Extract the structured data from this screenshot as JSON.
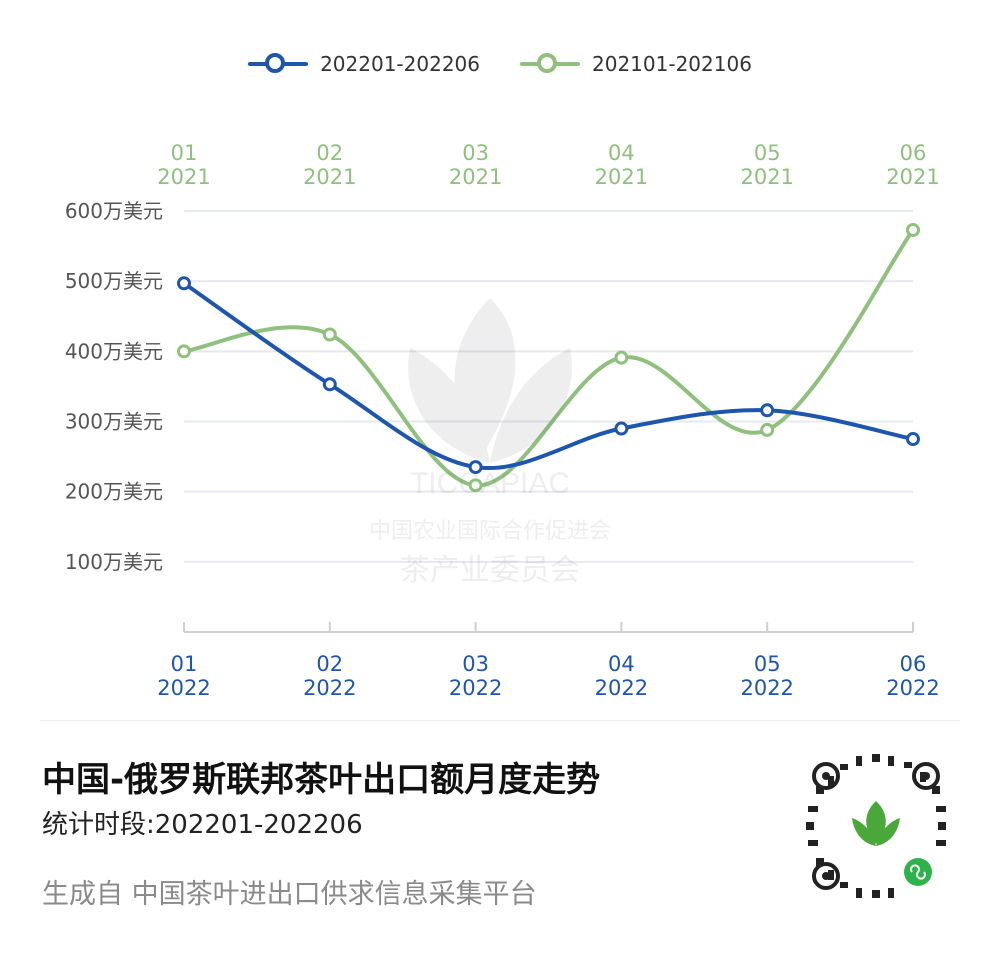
{
  "chart_data": {
    "type": "line",
    "series": [
      {
        "name": "202201-202206",
        "color": "#1f56ad",
        "values": [
          497,
          353,
          235,
          290,
          316,
          275
        ]
      },
      {
        "name": "202101-202106",
        "color": "#8fc07e",
        "values": [
          400,
          424,
          209,
          391,
          288,
          573
        ]
      }
    ],
    "x_bottom": [
      {
        "month": "01",
        "year": "2022"
      },
      {
        "month": "02",
        "year": "2022"
      },
      {
        "month": "03",
        "year": "2022"
      },
      {
        "month": "04",
        "year": "2022"
      },
      {
        "month": "05",
        "year": "2022"
      },
      {
        "month": "06",
        "year": "2022"
      }
    ],
    "x_top": [
      {
        "month": "01",
        "year": "2021"
      },
      {
        "month": "02",
        "year": "2021"
      },
      {
        "month": "03",
        "year": "2021"
      },
      {
        "month": "04",
        "year": "2021"
      },
      {
        "month": "05",
        "year": "2021"
      },
      {
        "month": "06",
        "year": "2021"
      }
    ],
    "yticks": [
      {
        "value": 600,
        "label": "600万美元"
      },
      {
        "value": 500,
        "label": "500万美元"
      },
      {
        "value": 400,
        "label": "400万美元"
      },
      {
        "value": 300,
        "label": "300万美元"
      },
      {
        "value": 200,
        "label": "200万美元"
      },
      {
        "value": 100,
        "label": "100万美元"
      }
    ],
    "ylim": [
      0,
      600
    ],
    "grid": true,
    "legend_position": "top-center"
  },
  "legend": {
    "item1": "202201-202206",
    "item2": "202101-202106"
  },
  "footer": {
    "title": "中国-俄罗斯联邦茶叶出口额月度走势",
    "subtitle": "统计时段:202201-202206",
    "source": "生成自 中国茶叶进出口供求信息采集平台"
  },
  "watermark": {
    "org_abbr": "TICCAPIAC",
    "org_line1": "中国农业国际合作促进会",
    "org_line2": "茶产业委员会"
  },
  "icons": {
    "qr": "mini-program-qr-icon",
    "wm": "tea-leaf-logo-icon"
  }
}
